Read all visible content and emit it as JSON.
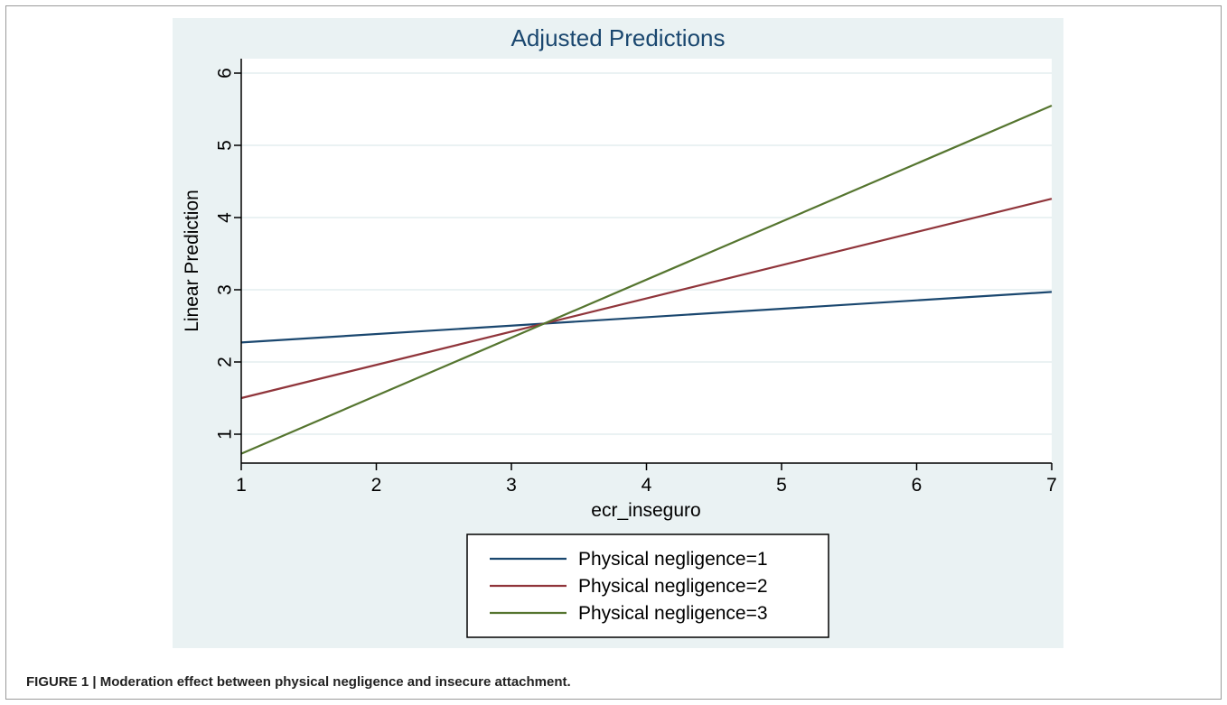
{
  "figure": {
    "caption_label": "FIGURE 1 |",
    "caption_text": "Moderation effect between physical negligence and insecure attachment."
  },
  "chart_data": {
    "type": "line",
    "title": "Adjusted Predictions",
    "xlabel": "ecr_inseguro",
    "ylabel": "Linear Prediction",
    "xlim": [
      1,
      7
    ],
    "ylim": [
      0.6,
      6.2
    ],
    "xticks": [
      1,
      2,
      3,
      4,
      5,
      6,
      7
    ],
    "yticks": [
      1,
      2,
      3,
      4,
      5,
      6
    ],
    "grid": true,
    "legend_position": "bottom",
    "colors": {
      "panel_bg": "#eaf2f3",
      "plot_bg": "#ffffff",
      "gridline": "#eaf2f3",
      "axis": "#000000"
    },
    "series": [
      {
        "name": "Physical negligence=1",
        "color": "#1a476f",
        "x": [
          1,
          7
        ],
        "y": [
          2.27,
          2.97
        ]
      },
      {
        "name": "Physical negligence=2",
        "color": "#90353b",
        "x": [
          1,
          7
        ],
        "y": [
          1.5,
          4.26
        ]
      },
      {
        "name": "Physical negligence=3",
        "color": "#55752f",
        "x": [
          1,
          7
        ],
        "y": [
          0.73,
          5.55
        ]
      }
    ]
  }
}
